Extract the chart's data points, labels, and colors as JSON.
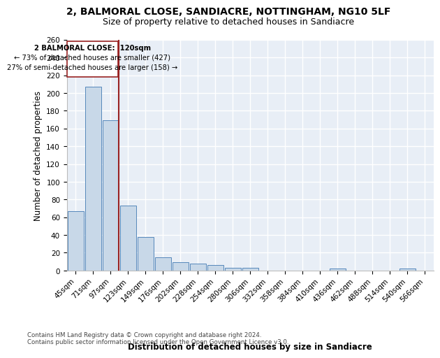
{
  "title1": "2, BALMORAL CLOSE, SANDIACRE, NOTTINGHAM, NG10 5LF",
  "title2": "Size of property relative to detached houses in Sandiacre",
  "xlabel": "Distribution of detached houses by size in Sandiacre",
  "ylabel": "Number of detached properties",
  "footnote": "Contains HM Land Registry data © Crown copyright and database right 2024.\nContains public sector information licensed under the Open Government Licence v3.0.",
  "categories": [
    "45sqm",
    "71sqm",
    "97sqm",
    "123sqm",
    "149sqm",
    "176sqm",
    "202sqm",
    "228sqm",
    "254sqm",
    "280sqm",
    "306sqm",
    "332sqm",
    "358sqm",
    "384sqm",
    "410sqm",
    "436sqm",
    "462sqm",
    "488sqm",
    "514sqm",
    "540sqm",
    "566sqm"
  ],
  "values": [
    67,
    207,
    169,
    73,
    38,
    15,
    9,
    8,
    6,
    3,
    3,
    0,
    0,
    0,
    0,
    2,
    0,
    0,
    0,
    2,
    0
  ],
  "bar_color": "#c8d8e8",
  "bar_edge_color": "#5588bb",
  "annotation_text_line1": "2 BALMORAL CLOSE:  120sqm",
  "annotation_text_line2": "← 73% of detached houses are smaller (427)",
  "annotation_text_line3": "27% of semi-detached houses are larger (158) →",
  "vline_color": "#992222",
  "box_edge_color": "#992222",
  "ylim": [
    0,
    260
  ],
  "yticks": [
    0,
    20,
    40,
    60,
    80,
    100,
    120,
    140,
    160,
    180,
    200,
    220,
    240,
    260
  ],
  "bg_color": "#e8eef6",
  "grid_color": "#ffffff",
  "title_fontsize": 10,
  "subtitle_fontsize": 9,
  "axis_label_fontsize": 8.5,
  "tick_fontsize": 7.5,
  "footnote_fontsize": 6.2
}
